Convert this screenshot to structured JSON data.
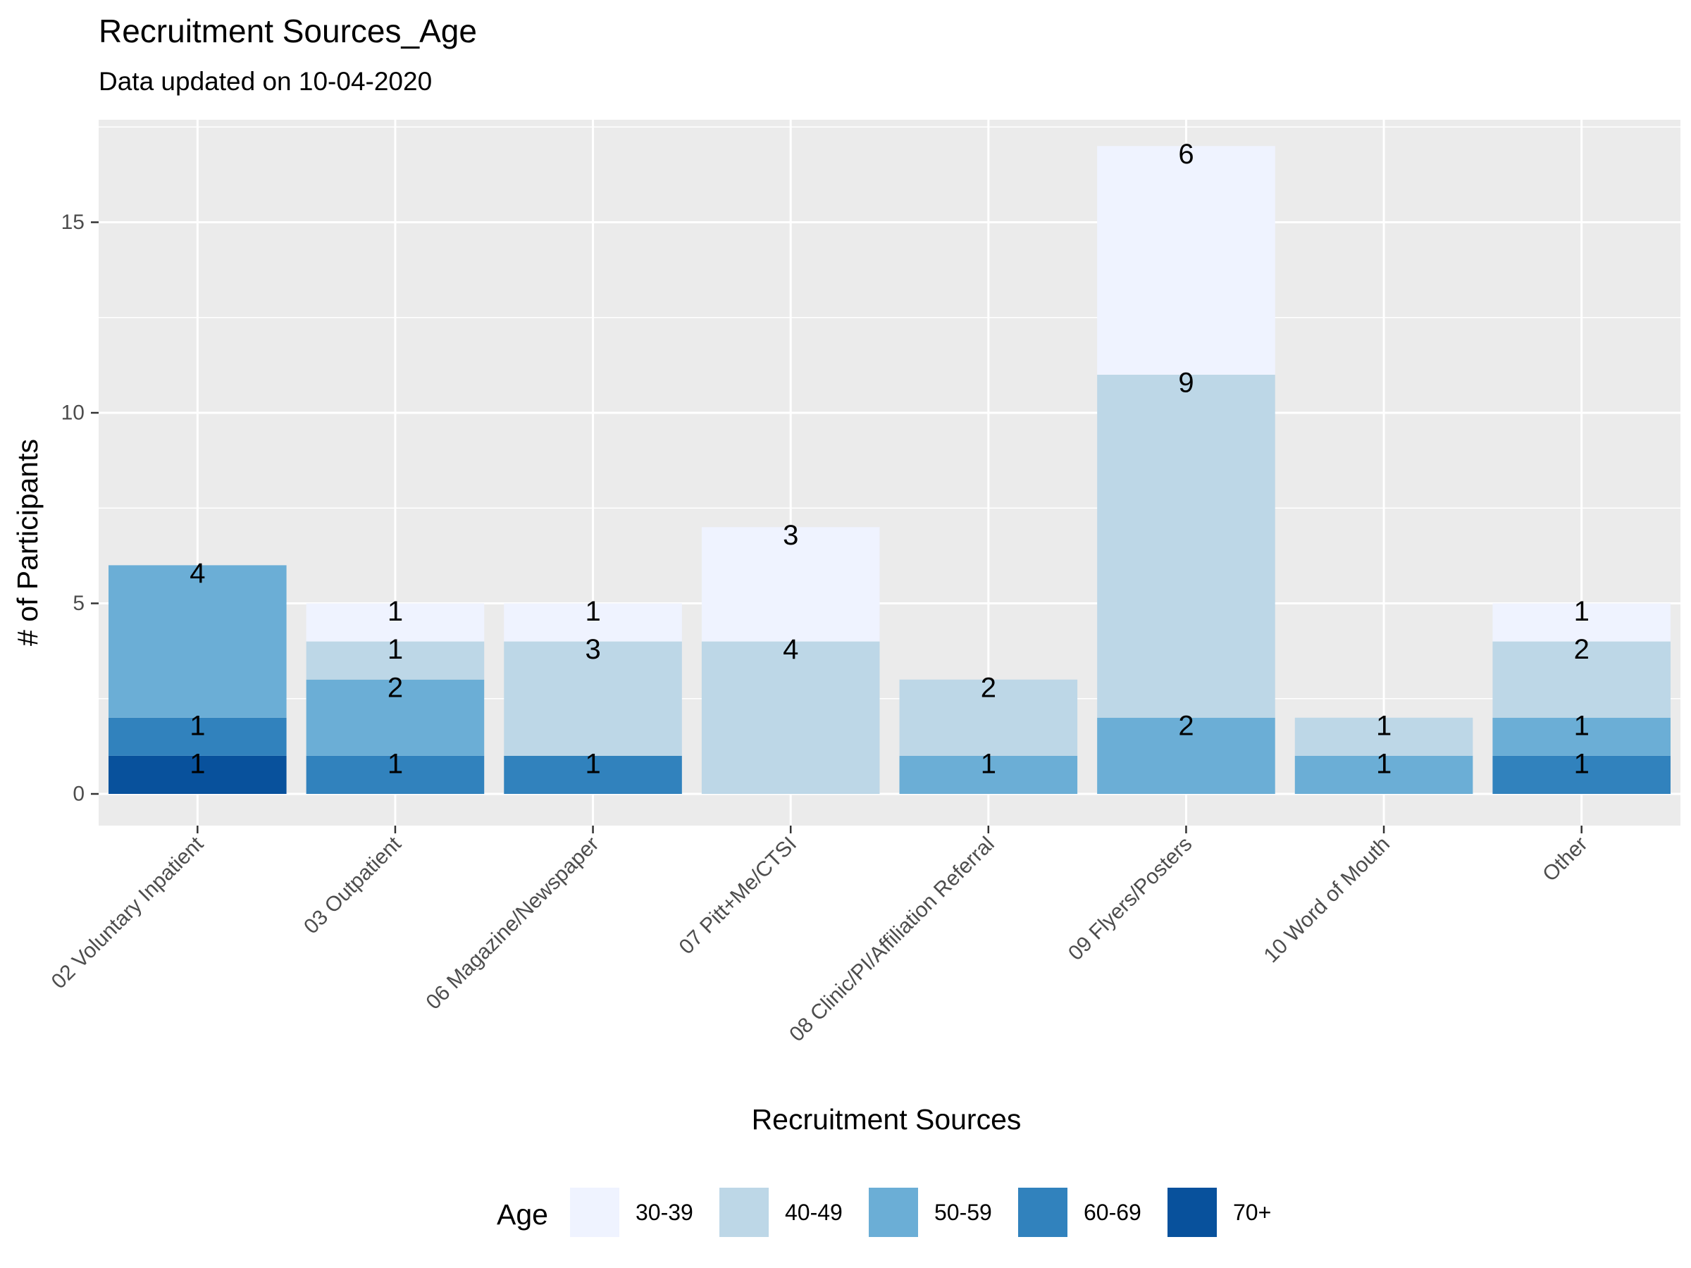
{
  "chart_data": {
    "type": "bar",
    "stacked": true,
    "title": "Recruitment Sources_Age",
    "subtitle": "Data updated on 10-04-2020",
    "xlabel": "Recruitment Sources",
    "ylabel": "# of Participants",
    "ylim": [
      0,
      17.85
    ],
    "yticks": [
      0,
      5,
      10,
      15
    ],
    "grid": true,
    "legend_position": "bottom",
    "legend_title": "Age",
    "categories": [
      "02 Voluntary Inpatient",
      "03 Outpatient",
      "06 Magazine/Newspaper",
      "07 Pitt+Me/CTSI",
      "08 Clinic/PI/Affiliation Referral",
      "09 Flyers/Posters",
      "10 Word of Mouth",
      "Other"
    ],
    "series": [
      {
        "name": "30-39",
        "color": "#eff3ff",
        "values": [
          0,
          1,
          1,
          3,
          0,
          6,
          0,
          1
        ]
      },
      {
        "name": "40-49",
        "color": "#bdd7e7",
        "values": [
          0,
          1,
          3,
          4,
          2,
          9,
          1,
          2
        ]
      },
      {
        "name": "50-59",
        "color": "#6baed6",
        "values": [
          4,
          2,
          0,
          0,
          1,
          2,
          1,
          1
        ]
      },
      {
        "name": "60-69",
        "color": "#3182bd",
        "values": [
          1,
          1,
          1,
          0,
          0,
          0,
          0,
          1
        ]
      },
      {
        "name": "70+",
        "color": "#08519c",
        "values": [
          1,
          0,
          0,
          0,
          0,
          0,
          0,
          0
        ]
      }
    ]
  }
}
